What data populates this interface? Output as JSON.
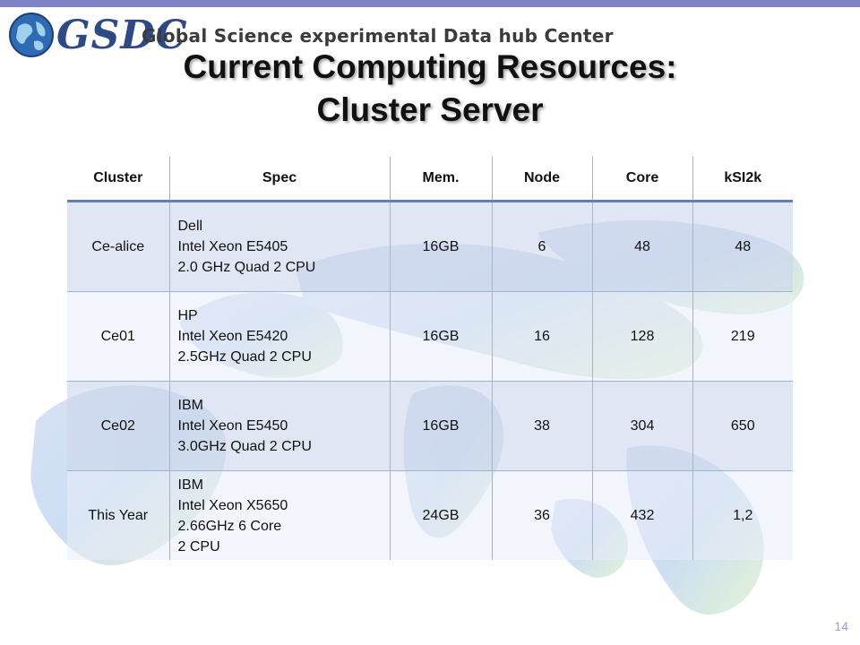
{
  "header": {
    "logo_text": "GSDC",
    "logo_subtitle": "Global Science experimental Data hub Center"
  },
  "title": {
    "line1": "Current Computing Resources:",
    "line2": "Cluster Server"
  },
  "table": {
    "columns": [
      "Cluster",
      "Spec",
      "Mem.",
      "Node",
      "Core",
      "kSI2k"
    ],
    "rows": [
      {
        "cluster": "Ce-alice",
        "spec": [
          "Dell",
          "Intel Xeon E5405",
          "2.0 GHz Quad  2 CPU"
        ],
        "mem": "16GB",
        "node": "6",
        "core": "48",
        "ksi2k": "48"
      },
      {
        "cluster": "Ce01",
        "spec": [
          "HP",
          "Intel Xeon E5420",
          "2.5GHz Quad 2 CPU"
        ],
        "mem": "16GB",
        "node": "16",
        "core": "128",
        "ksi2k": "219"
      },
      {
        "cluster": "Ce02",
        "spec": [
          "IBM",
          "Intel Xeon E5450",
          "3.0GHz Quad 2 CPU"
        ],
        "mem": "16GB",
        "node": "38",
        "core": "304",
        "ksi2k": "650"
      },
      {
        "cluster": "This Year",
        "spec": [
          "IBM",
          "Intel Xeon X5650",
          "2.66GHz 6 Core",
          "2 CPU"
        ],
        "mem": "24GB",
        "node": "36",
        "core": "432",
        "ksi2k": "1,2"
      }
    ]
  },
  "page_number": "14",
  "colors": {
    "accent_bar": "#7f82c4",
    "header_border": "#5b7fbf",
    "row_fill": "#cdd7ec"
  }
}
